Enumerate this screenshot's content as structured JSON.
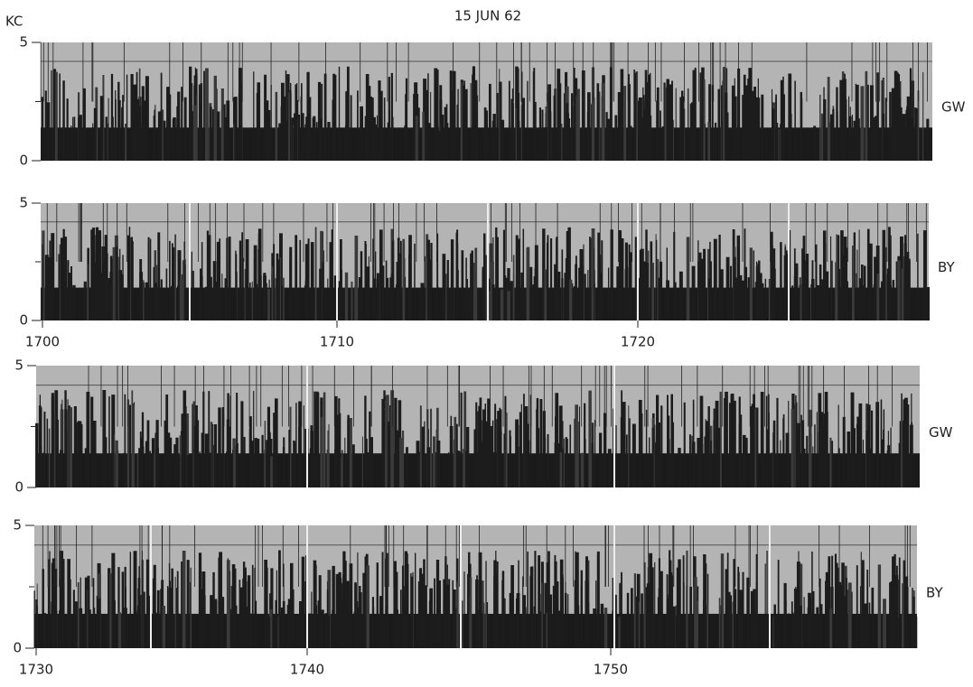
{
  "title": "15 JUN 62",
  "unit": "KC",
  "panels": [
    {
      "station": "GW",
      "yticks": [
        "5",
        "0"
      ],
      "xlabels": []
    },
    {
      "station": "BY",
      "yticks": [
        "5",
        "0"
      ],
      "xlabels": [
        "1700",
        "1710",
        "1720"
      ]
    },
    {
      "station": "GW",
      "yticks": [
        "5",
        "0"
      ],
      "xlabels": []
    },
    {
      "station": "BY",
      "yticks": [
        "5",
        "0"
      ],
      "xlabels": [
        "1730",
        "1740",
        "1750"
      ]
    }
  ]
}
